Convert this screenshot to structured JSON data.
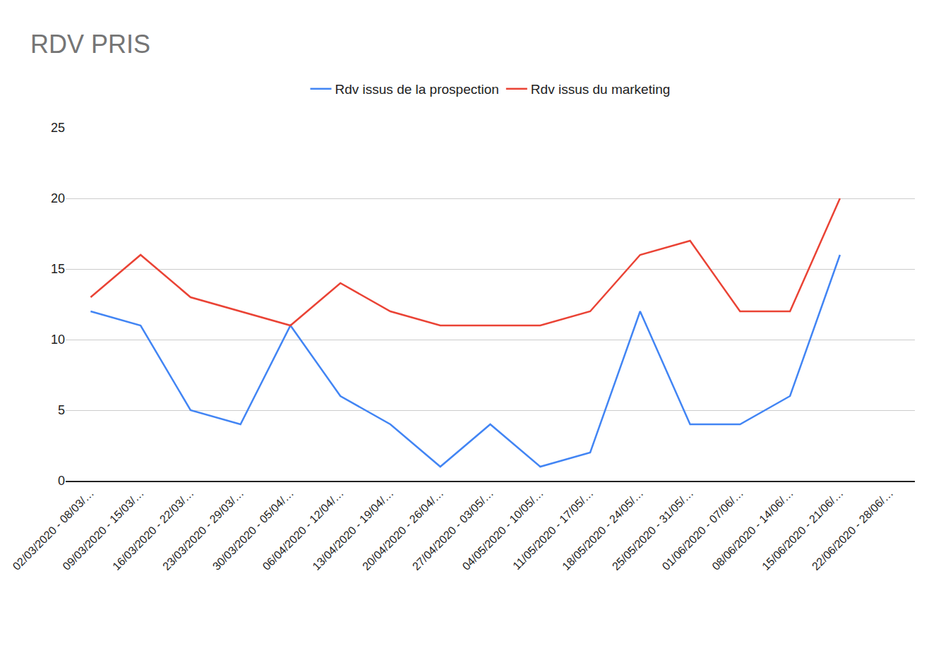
{
  "chart_data": {
    "type": "line",
    "title": "RDV PRIS",
    "categories": [
      "02/03/2020 - 08/03/…",
      "09/03/2020 - 15/03/…",
      "16/03/2020 - 22/03/…",
      "23/03/2020 - 29/03/…",
      "30/03/2020 - 05/04/…",
      "06/04/2020 - 12/04/…",
      "13/04/2020 - 19/04/…",
      "20/04/2020 - 26/04/…",
      "27/04/2020 - 03/05/…",
      "04/05/2020 - 10/05/…",
      "11/05/2020 - 17/05/…",
      "18/05/2020 - 24/05/…",
      "25/05/2020 - 31/05/…",
      "01/06/2020 - 07/06/…",
      "08/06/2020 - 14/06/…",
      "15/06/2020 - 21/06/…",
      "22/06/2020 - 28/06/…"
    ],
    "series": [
      {
        "name": "Rdv issus de la prospection",
        "color": "#4285f4",
        "values": [
          12,
          11,
          5,
          4,
          11,
          6,
          4,
          1,
          4,
          1,
          2,
          12,
          4,
          4,
          6,
          16,
          null
        ]
      },
      {
        "name": "Rdv issus du marketing",
        "color": "#ea4335",
        "values": [
          13,
          16,
          13,
          12,
          11,
          14,
          12,
          11,
          11,
          11,
          12,
          16,
          17,
          12,
          12,
          20,
          null
        ]
      }
    ],
    "ylim": [
      0,
      25
    ],
    "yticks": [
      0,
      5,
      10,
      15,
      20,
      25
    ],
    "grid": true,
    "legend": "top"
  }
}
